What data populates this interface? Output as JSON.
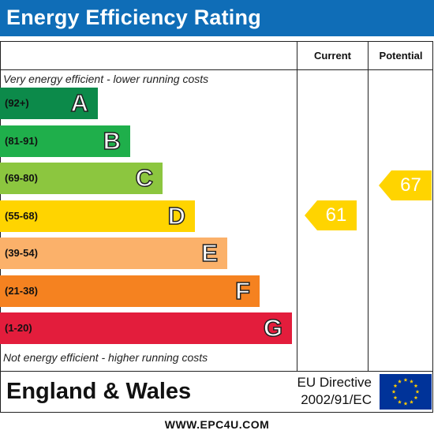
{
  "chart_data": {
    "type": "energy-efficiency-rating",
    "title": "Energy Efficiency Rating",
    "columns": [
      "Current",
      "Potential"
    ],
    "top_note": "Very energy efficient - lower running costs",
    "bottom_note": "Not energy efficient - higher running costs",
    "bands": [
      {
        "letter": "A",
        "range": "(92+)",
        "color": "#0c8a4a"
      },
      {
        "letter": "B",
        "range": "(81-91)",
        "color": "#1faf4b"
      },
      {
        "letter": "C",
        "range": "(69-80)",
        "color": "#8cc63f"
      },
      {
        "letter": "D",
        "range": "(55-68)",
        "color": "#ffd400"
      },
      {
        "letter": "E",
        "range": "(39-54)",
        "color": "#fbb16a"
      },
      {
        "letter": "F",
        "range": "(21-38)",
        "color": "#f58220"
      },
      {
        "letter": "G",
        "range": "(1-20)",
        "color": "#e31d3c"
      }
    ],
    "ratings": {
      "current": {
        "value": 61,
        "band": "D"
      },
      "potential": {
        "value": 67,
        "band": "D"
      }
    },
    "arrow_color": "#ffd400"
  },
  "footer": {
    "country": "England & Wales",
    "directive_line1": "EU Directive",
    "directive_line2": "2002/91/EC",
    "flag_icon": "eu-flag-icon",
    "flag_color": "#003399",
    "star_color": "#ffcc00"
  },
  "website": "WWW.EPC4U.COM"
}
